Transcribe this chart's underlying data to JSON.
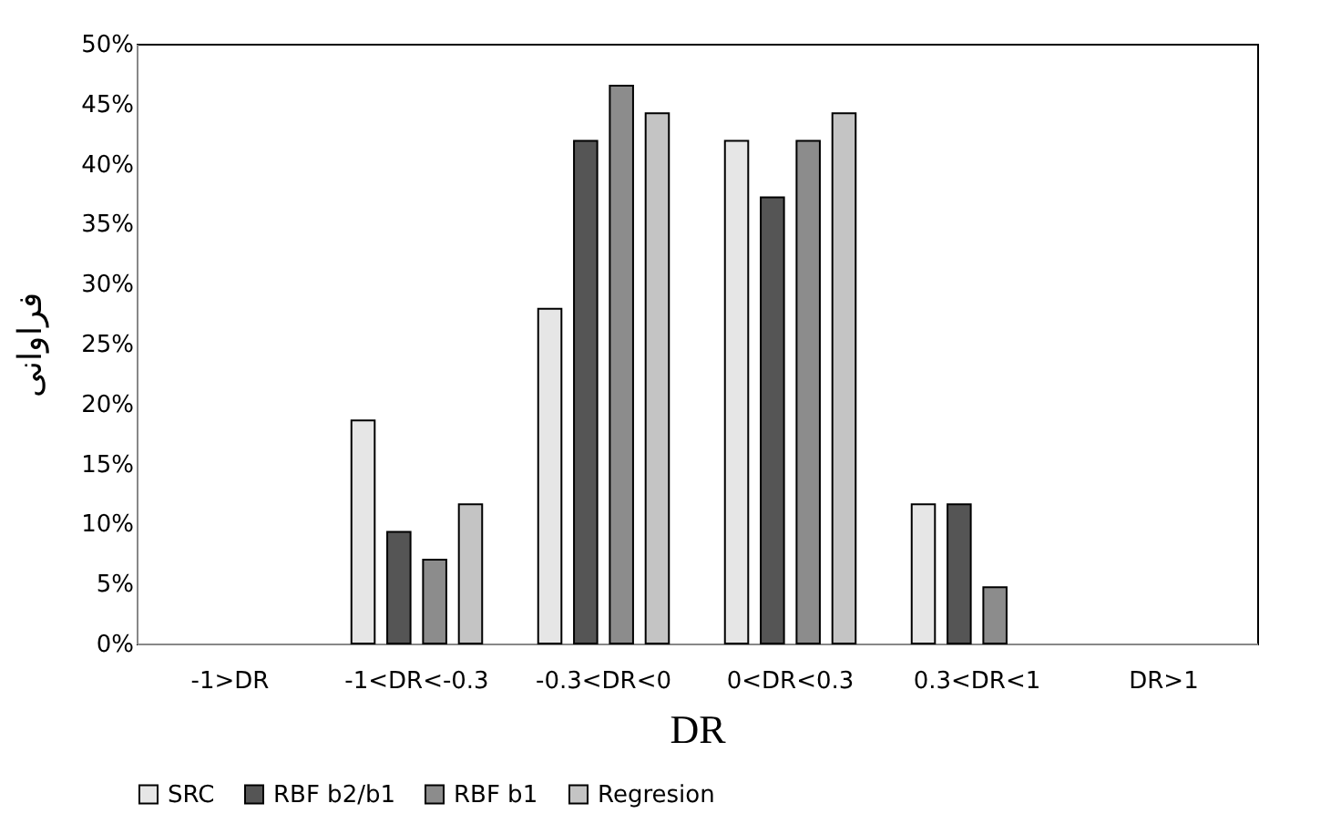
{
  "chart_data": {
    "type": "bar",
    "xlabel": "DR",
    "ylabel": "فراوانی",
    "categories": [
      "-1>DR",
      "-1<DR<-0.3",
      "-0.3<DR<0",
      "0<DR<0.3",
      "0.3<DR<1",
      "DR>1"
    ],
    "series": [
      {
        "name": "SRC",
        "color": "#e6e6e6",
        "values": [
          0,
          18.6,
          27.9,
          41.9,
          11.6,
          0
        ]
      },
      {
        "name": "RBF b2/b1",
        "color": "#555555",
        "values": [
          0,
          9.3,
          41.9,
          37.2,
          11.6,
          0
        ]
      },
      {
        "name": "RBF b1",
        "color": "#8c8c8c",
        "values": [
          0,
          7.0,
          46.5,
          41.9,
          4.7,
          0
        ]
      },
      {
        "name": "Regresion",
        "color": "#c4c4c4",
        "values": [
          0,
          11.6,
          44.2,
          44.2,
          0,
          0
        ]
      }
    ],
    "ylim": [
      0,
      50
    ],
    "yticks": [
      {
        "value": 0,
        "label": "0%"
      },
      {
        "value": 5,
        "label": "5%"
      },
      {
        "value": 10,
        "label": "10%"
      },
      {
        "value": 15,
        "label": "15%"
      },
      {
        "value": 20,
        "label": "20%"
      },
      {
        "value": 25,
        "label": "25%"
      },
      {
        "value": 30,
        "label": "30%"
      },
      {
        "value": 35,
        "label": "35%"
      },
      {
        "value": 40,
        "label": "40%"
      },
      {
        "value": 45,
        "label": "45%"
      },
      {
        "value": 50,
        "label": "50%"
      }
    ],
    "grid": false,
    "legend": "bottom"
  }
}
